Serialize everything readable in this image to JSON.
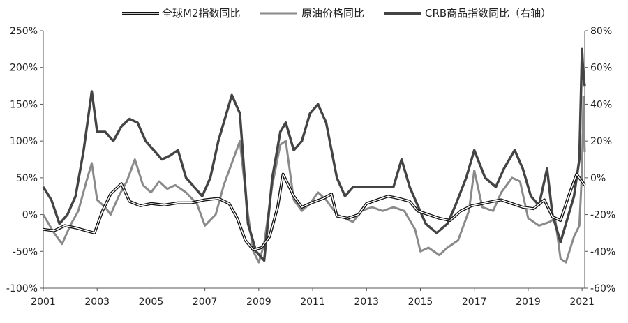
{
  "chart_data": {
    "type": "line",
    "title": "",
    "xlabel": "",
    "ylabel_left": "",
    "ylabel_right": "",
    "x_ticks": [
      "2001",
      "2003",
      "2005",
      "2007",
      "2009",
      "2011",
      "2013",
      "2015",
      "2017",
      "2019",
      "2021"
    ],
    "y_left_ticks": [
      "250%",
      "200%",
      "150%",
      "100%",
      "50%",
      "0%",
      "-50%",
      "-100%"
    ],
    "y_right_ticks": [
      "80%",
      "60%",
      "40%",
      "20%",
      "0%",
      "-20%",
      "-40%",
      "-60%"
    ],
    "ylim_left": [
      -100,
      250
    ],
    "ylim_right": [
      -60,
      80
    ],
    "xlim": [
      2001,
      2021.1
    ],
    "grid": false,
    "legend_position": "top",
    "series": [
      {
        "name": "全球M2指数同比",
        "axis": "left",
        "color": "#111111",
        "style": "outlined",
        "points": [
          [
            2001.0,
            -20
          ],
          [
            2001.4,
            -22
          ],
          [
            2001.8,
            -15
          ],
          [
            2002.2,
            -18
          ],
          [
            2002.6,
            -22
          ],
          [
            2002.9,
            -25
          ],
          [
            2003.2,
            5
          ],
          [
            2003.5,
            28
          ],
          [
            2003.9,
            42
          ],
          [
            2004.2,
            18
          ],
          [
            2004.6,
            12
          ],
          [
            2005.0,
            15
          ],
          [
            2005.5,
            13
          ],
          [
            2006.0,
            16
          ],
          [
            2006.5,
            16
          ],
          [
            2007.0,
            20
          ],
          [
            2007.5,
            22
          ],
          [
            2007.9,
            15
          ],
          [
            2008.2,
            -5
          ],
          [
            2008.5,
            -35
          ],
          [
            2008.8,
            -48
          ],
          [
            2009.1,
            -45
          ],
          [
            2009.4,
            -30
          ],
          [
            2009.7,
            10
          ],
          [
            2009.9,
            55
          ],
          [
            2010.1,
            40
          ],
          [
            2010.3,
            25
          ],
          [
            2010.6,
            10
          ],
          [
            2010.9,
            15
          ],
          [
            2011.1,
            18
          ],
          [
            2011.4,
            22
          ],
          [
            2011.7,
            28
          ],
          [
            2011.9,
            -2
          ],
          [
            2012.3,
            -5
          ],
          [
            2012.7,
            0
          ],
          [
            2013.0,
            15
          ],
          [
            2013.4,
            20
          ],
          [
            2013.8,
            25
          ],
          [
            2014.2,
            22
          ],
          [
            2014.6,
            18
          ],
          [
            2014.9,
            5
          ],
          [
            2015.3,
            0
          ],
          [
            2015.7,
            -5
          ],
          [
            2016.1,
            -8
          ],
          [
            2016.5,
            5
          ],
          [
            2016.9,
            12
          ],
          [
            2017.3,
            15
          ],
          [
            2017.7,
            18
          ],
          [
            2018.0,
            20
          ],
          [
            2018.4,
            15
          ],
          [
            2018.8,
            10
          ],
          [
            2019.2,
            8
          ],
          [
            2019.6,
            20
          ],
          [
            2019.9,
            -3
          ],
          [
            2020.2,
            -8
          ],
          [
            2020.5,
            25
          ],
          [
            2020.8,
            55
          ],
          [
            2021.0,
            45
          ],
          [
            2021.1,
            40
          ]
        ]
      },
      {
        "name": "原油价格同比",
        "axis": "left",
        "color": "#8a8a8a",
        "style": "plain",
        "points": [
          [
            2001.0,
            0
          ],
          [
            2001.4,
            -25
          ],
          [
            2001.7,
            -40
          ],
          [
            2002.0,
            -15
          ],
          [
            2002.3,
            5
          ],
          [
            2002.6,
            45
          ],
          [
            2002.8,
            70
          ],
          [
            2003.0,
            20
          ],
          [
            2003.3,
            10
          ],
          [
            2003.5,
            0
          ],
          [
            2003.8,
            25
          ],
          [
            2004.1,
            45
          ],
          [
            2004.4,
            75
          ],
          [
            2004.7,
            40
          ],
          [
            2005.0,
            30
          ],
          [
            2005.3,
            45
          ],
          [
            2005.6,
            35
          ],
          [
            2005.9,
            40
          ],
          [
            2006.3,
            30
          ],
          [
            2006.7,
            15
          ],
          [
            2007.0,
            -15
          ],
          [
            2007.4,
            0
          ],
          [
            2007.7,
            40
          ],
          [
            2008.0,
            70
          ],
          [
            2008.3,
            100
          ],
          [
            2008.6,
            0
          ],
          [
            2008.8,
            -50
          ],
          [
            2009.0,
            -65
          ],
          [
            2009.2,
            -40
          ],
          [
            2009.5,
            40
          ],
          [
            2009.8,
            95
          ],
          [
            2010.0,
            100
          ],
          [
            2010.3,
            20
          ],
          [
            2010.6,
            5
          ],
          [
            2010.9,
            15
          ],
          [
            2011.2,
            30
          ],
          [
            2011.5,
            20
          ],
          [
            2011.9,
            0
          ],
          [
            2012.2,
            -5
          ],
          [
            2012.5,
            -10
          ],
          [
            2012.8,
            5
          ],
          [
            2013.2,
            10
          ],
          [
            2013.6,
            5
          ],
          [
            2014.0,
            10
          ],
          [
            2014.4,
            5
          ],
          [
            2014.8,
            -20
          ],
          [
            2015.0,
            -50
          ],
          [
            2015.3,
            -45
          ],
          [
            2015.7,
            -55
          ],
          [
            2016.0,
            -45
          ],
          [
            2016.4,
            -35
          ],
          [
            2016.8,
            5
          ],
          [
            2017.0,
            60
          ],
          [
            2017.3,
            10
          ],
          [
            2017.7,
            5
          ],
          [
            2018.0,
            30
          ],
          [
            2018.4,
            50
          ],
          [
            2018.7,
            45
          ],
          [
            2019.0,
            -5
          ],
          [
            2019.4,
            -15
          ],
          [
            2019.8,
            -10
          ],
          [
            2020.0,
            -5
          ],
          [
            2020.2,
            -60
          ],
          [
            2020.4,
            -65
          ],
          [
            2020.7,
            -30
          ],
          [
            2020.9,
            -15
          ],
          [
            2021.0,
            60
          ],
          [
            2021.05,
            160
          ],
          [
            2021.1,
            85
          ]
        ]
      },
      {
        "name": "CRB商品指数同比（右轴）",
        "axis": "right",
        "color": "#444444",
        "style": "thick",
        "points": [
          [
            2001.0,
            -5
          ],
          [
            2001.3,
            -12
          ],
          [
            2001.6,
            -25
          ],
          [
            2001.9,
            -20
          ],
          [
            2002.2,
            -10
          ],
          [
            2002.5,
            15
          ],
          [
            2002.8,
            47
          ],
          [
            2003.0,
            25
          ],
          [
            2003.3,
            25
          ],
          [
            2003.6,
            20
          ],
          [
            2003.9,
            28
          ],
          [
            2004.2,
            32
          ],
          [
            2004.5,
            30
          ],
          [
            2004.8,
            20
          ],
          [
            2005.1,
            15
          ],
          [
            2005.4,
            10
          ],
          [
            2005.7,
            12
          ],
          [
            2006.0,
            15
          ],
          [
            2006.3,
            0
          ],
          [
            2006.6,
            -5
          ],
          [
            2006.9,
            -10
          ],
          [
            2007.2,
            0
          ],
          [
            2007.5,
            20
          ],
          [
            2007.8,
            35
          ],
          [
            2008.0,
            45
          ],
          [
            2008.3,
            35
          ],
          [
            2008.6,
            -25
          ],
          [
            2008.9,
            -40
          ],
          [
            2009.2,
            -45
          ],
          [
            2009.5,
            0
          ],
          [
            2009.8,
            25
          ],
          [
            2010.0,
            30
          ],
          [
            2010.3,
            15
          ],
          [
            2010.6,
            20
          ],
          [
            2010.9,
            35
          ],
          [
            2011.2,
            40
          ],
          [
            2011.5,
            30
          ],
          [
            2011.9,
            0
          ],
          [
            2012.2,
            -10
          ],
          [
            2012.5,
            -5
          ],
          [
            2012.8,
            -5
          ],
          [
            2013.2,
            -5
          ],
          [
            2013.6,
            -5
          ],
          [
            2014.0,
            -5
          ],
          [
            2014.3,
            10
          ],
          [
            2014.6,
            -5
          ],
          [
            2014.9,
            -15
          ],
          [
            2015.2,
            -25
          ],
          [
            2015.6,
            -30
          ],
          [
            2016.0,
            -25
          ],
          [
            2016.3,
            -15
          ],
          [
            2016.7,
            0
          ],
          [
            2017.0,
            15
          ],
          [
            2017.4,
            0
          ],
          [
            2017.8,
            -5
          ],
          [
            2018.1,
            5
          ],
          [
            2018.5,
            15
          ],
          [
            2018.8,
            5
          ],
          [
            2019.1,
            -10
          ],
          [
            2019.4,
            -15
          ],
          [
            2019.7,
            5
          ],
          [
            2019.9,
            -20
          ],
          [
            2020.2,
            -35
          ],
          [
            2020.4,
            -25
          ],
          [
            2020.7,
            -10
          ],
          [
            2020.9,
            10
          ],
          [
            2021.0,
            70
          ],
          [
            2021.05,
            55
          ],
          [
            2021.1,
            50
          ]
        ]
      }
    ]
  }
}
